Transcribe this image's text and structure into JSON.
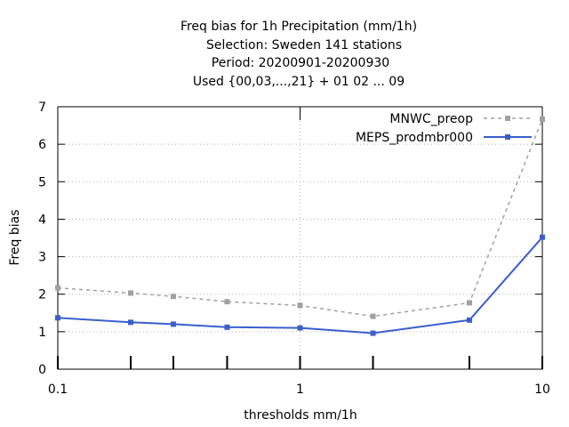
{
  "chart_data": {
    "type": "line",
    "title_lines": [
      "Freq bias  for 1h Precipitation (mm/1h)",
      "Selection: Sweden    141 stations",
      "Period: 20200901-20200930",
      "Used {00,03,...,21} + 01 02 ... 09"
    ],
    "xlabel": "thresholds mm/1h",
    "ylabel": "Freq bias",
    "x_scale": "log",
    "xlim": [
      0.1,
      10
    ],
    "ylim": [
      0,
      7
    ],
    "x_tick_labels": [
      "0.1",
      "1",
      "10"
    ],
    "y_tick_labels": [
      "0",
      "1",
      "2",
      "3",
      "4",
      "5",
      "6",
      "7"
    ],
    "grid": true,
    "legend_position": "top-right",
    "x": [
      0.1,
      0.2,
      0.3,
      0.5,
      1,
      2,
      5,
      10
    ],
    "series": [
      {
        "name": "MNWC_preop",
        "color": "#a0a0a0",
        "dashed": true,
        "values": [
          2.17,
          2.03,
          1.94,
          1.8,
          1.7,
          1.41,
          1.77,
          6.67
        ]
      },
      {
        "name": "MEPS_prodmbr000",
        "color": "#3a5fcd",
        "dashed": false,
        "values": [
          1.37,
          1.25,
          1.2,
          1.12,
          1.1,
          0.96,
          1.31,
          3.52
        ]
      }
    ]
  }
}
